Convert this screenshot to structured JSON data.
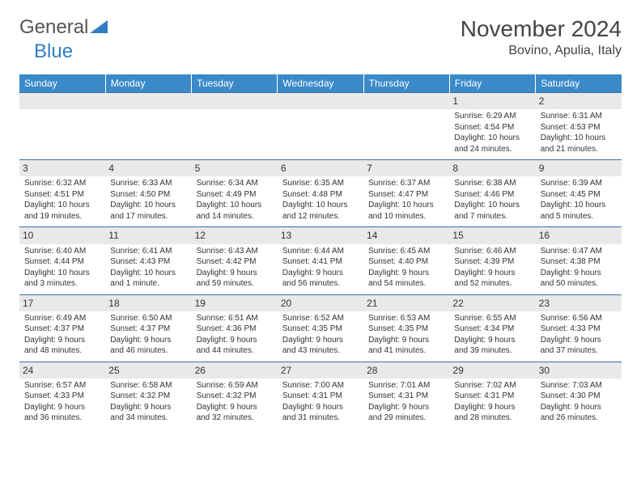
{
  "brand": {
    "part1": "General",
    "part2": "Blue"
  },
  "title": "November 2024",
  "location": "Bovino, Apulia, Italy",
  "colors": {
    "header_bg": "#3a8ac9",
    "header_text": "#ffffff",
    "border": "#3a6fa8",
    "daynum_bg": "#e9e9e9",
    "text": "#333333",
    "brand_blue": "#2f7dc4"
  },
  "day_headers": [
    "Sunday",
    "Monday",
    "Tuesday",
    "Wednesday",
    "Thursday",
    "Friday",
    "Saturday"
  ],
  "weeks": [
    [
      null,
      null,
      null,
      null,
      null,
      {
        "d": "1",
        "sr": "Sunrise: 6:29 AM",
        "ss": "Sunset: 4:54 PM",
        "dl1": "Daylight: 10 hours",
        "dl2": "and 24 minutes."
      },
      {
        "d": "2",
        "sr": "Sunrise: 6:31 AM",
        "ss": "Sunset: 4:53 PM",
        "dl1": "Daylight: 10 hours",
        "dl2": "and 21 minutes."
      }
    ],
    [
      {
        "d": "3",
        "sr": "Sunrise: 6:32 AM",
        "ss": "Sunset: 4:51 PM",
        "dl1": "Daylight: 10 hours",
        "dl2": "and 19 minutes."
      },
      {
        "d": "4",
        "sr": "Sunrise: 6:33 AM",
        "ss": "Sunset: 4:50 PM",
        "dl1": "Daylight: 10 hours",
        "dl2": "and 17 minutes."
      },
      {
        "d": "5",
        "sr": "Sunrise: 6:34 AM",
        "ss": "Sunset: 4:49 PM",
        "dl1": "Daylight: 10 hours",
        "dl2": "and 14 minutes."
      },
      {
        "d": "6",
        "sr": "Sunrise: 6:35 AM",
        "ss": "Sunset: 4:48 PM",
        "dl1": "Daylight: 10 hours",
        "dl2": "and 12 minutes."
      },
      {
        "d": "7",
        "sr": "Sunrise: 6:37 AM",
        "ss": "Sunset: 4:47 PM",
        "dl1": "Daylight: 10 hours",
        "dl2": "and 10 minutes."
      },
      {
        "d": "8",
        "sr": "Sunrise: 6:38 AM",
        "ss": "Sunset: 4:46 PM",
        "dl1": "Daylight: 10 hours",
        "dl2": "and 7 minutes."
      },
      {
        "d": "9",
        "sr": "Sunrise: 6:39 AM",
        "ss": "Sunset: 4:45 PM",
        "dl1": "Daylight: 10 hours",
        "dl2": "and 5 minutes."
      }
    ],
    [
      {
        "d": "10",
        "sr": "Sunrise: 6:40 AM",
        "ss": "Sunset: 4:44 PM",
        "dl1": "Daylight: 10 hours",
        "dl2": "and 3 minutes."
      },
      {
        "d": "11",
        "sr": "Sunrise: 6:41 AM",
        "ss": "Sunset: 4:43 PM",
        "dl1": "Daylight: 10 hours",
        "dl2": "and 1 minute."
      },
      {
        "d": "12",
        "sr": "Sunrise: 6:43 AM",
        "ss": "Sunset: 4:42 PM",
        "dl1": "Daylight: 9 hours",
        "dl2": "and 59 minutes."
      },
      {
        "d": "13",
        "sr": "Sunrise: 6:44 AM",
        "ss": "Sunset: 4:41 PM",
        "dl1": "Daylight: 9 hours",
        "dl2": "and 56 minutes."
      },
      {
        "d": "14",
        "sr": "Sunrise: 6:45 AM",
        "ss": "Sunset: 4:40 PM",
        "dl1": "Daylight: 9 hours",
        "dl2": "and 54 minutes."
      },
      {
        "d": "15",
        "sr": "Sunrise: 6:46 AM",
        "ss": "Sunset: 4:39 PM",
        "dl1": "Daylight: 9 hours",
        "dl2": "and 52 minutes."
      },
      {
        "d": "16",
        "sr": "Sunrise: 6:47 AM",
        "ss": "Sunset: 4:38 PM",
        "dl1": "Daylight: 9 hours",
        "dl2": "and 50 minutes."
      }
    ],
    [
      {
        "d": "17",
        "sr": "Sunrise: 6:49 AM",
        "ss": "Sunset: 4:37 PM",
        "dl1": "Daylight: 9 hours",
        "dl2": "and 48 minutes."
      },
      {
        "d": "18",
        "sr": "Sunrise: 6:50 AM",
        "ss": "Sunset: 4:37 PM",
        "dl1": "Daylight: 9 hours",
        "dl2": "and 46 minutes."
      },
      {
        "d": "19",
        "sr": "Sunrise: 6:51 AM",
        "ss": "Sunset: 4:36 PM",
        "dl1": "Daylight: 9 hours",
        "dl2": "and 44 minutes."
      },
      {
        "d": "20",
        "sr": "Sunrise: 6:52 AM",
        "ss": "Sunset: 4:35 PM",
        "dl1": "Daylight: 9 hours",
        "dl2": "and 43 minutes."
      },
      {
        "d": "21",
        "sr": "Sunrise: 6:53 AM",
        "ss": "Sunset: 4:35 PM",
        "dl1": "Daylight: 9 hours",
        "dl2": "and 41 minutes."
      },
      {
        "d": "22",
        "sr": "Sunrise: 6:55 AM",
        "ss": "Sunset: 4:34 PM",
        "dl1": "Daylight: 9 hours",
        "dl2": "and 39 minutes."
      },
      {
        "d": "23",
        "sr": "Sunrise: 6:56 AM",
        "ss": "Sunset: 4:33 PM",
        "dl1": "Daylight: 9 hours",
        "dl2": "and 37 minutes."
      }
    ],
    [
      {
        "d": "24",
        "sr": "Sunrise: 6:57 AM",
        "ss": "Sunset: 4:33 PM",
        "dl1": "Daylight: 9 hours",
        "dl2": "and 36 minutes."
      },
      {
        "d": "25",
        "sr": "Sunrise: 6:58 AM",
        "ss": "Sunset: 4:32 PM",
        "dl1": "Daylight: 9 hours",
        "dl2": "and 34 minutes."
      },
      {
        "d": "26",
        "sr": "Sunrise: 6:59 AM",
        "ss": "Sunset: 4:32 PM",
        "dl1": "Daylight: 9 hours",
        "dl2": "and 32 minutes."
      },
      {
        "d": "27",
        "sr": "Sunrise: 7:00 AM",
        "ss": "Sunset: 4:31 PM",
        "dl1": "Daylight: 9 hours",
        "dl2": "and 31 minutes."
      },
      {
        "d": "28",
        "sr": "Sunrise: 7:01 AM",
        "ss": "Sunset: 4:31 PM",
        "dl1": "Daylight: 9 hours",
        "dl2": "and 29 minutes."
      },
      {
        "d": "29",
        "sr": "Sunrise: 7:02 AM",
        "ss": "Sunset: 4:31 PM",
        "dl1": "Daylight: 9 hours",
        "dl2": "and 28 minutes."
      },
      {
        "d": "30",
        "sr": "Sunrise: 7:03 AM",
        "ss": "Sunset: 4:30 PM",
        "dl1": "Daylight: 9 hours",
        "dl2": "and 26 minutes."
      }
    ]
  ]
}
